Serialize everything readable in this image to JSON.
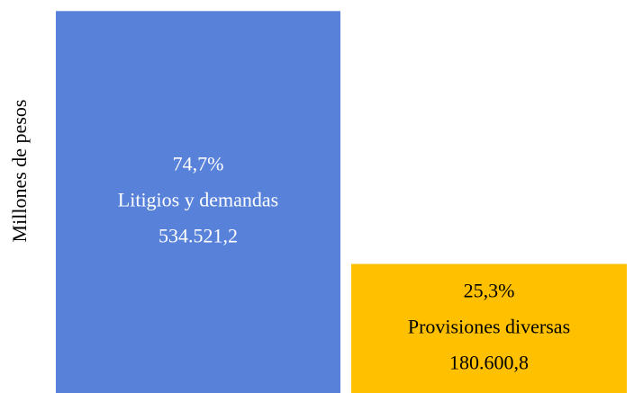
{
  "chart_data": {
    "type": "bar",
    "y_label": "Millones de pesos",
    "categories": [
      "Litigios y demandas",
      "Provisiones diversas"
    ],
    "values": [
      534521.2,
      180600.8
    ],
    "value_labels": [
      "534.521,2",
      "180.600,8"
    ],
    "percentages": [
      74.7,
      25.3
    ],
    "percentage_labels": [
      "74,7%",
      "25,3%"
    ],
    "colors": [
      "#5882d9",
      "#ffc000"
    ],
    "ylim": [
      0,
      550000
    ]
  }
}
